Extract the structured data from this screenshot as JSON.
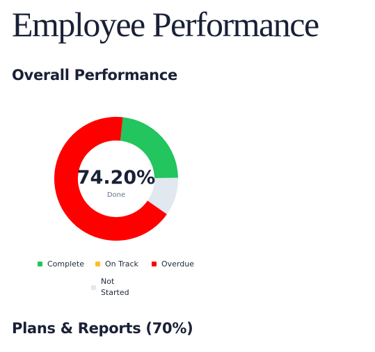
{
  "header": {
    "title": "Employee Performance"
  },
  "section_title": "Overall Performance",
  "chart_data": {
    "type": "donut",
    "center_value": "74.20%",
    "center_label": "Done",
    "series": [
      {
        "name": "Complete",
        "color": "#22c55e",
        "value": 23
      },
      {
        "name": "On Track",
        "color": "#fbbf24",
        "value": 0
      },
      {
        "name": "Overdue",
        "color": "#ff0000",
        "value": 67
      },
      {
        "name": "Not Started",
        "color": "#e2e8f0",
        "value": 10
      }
    ]
  },
  "section2_title": "Plans & Reports (70%)"
}
